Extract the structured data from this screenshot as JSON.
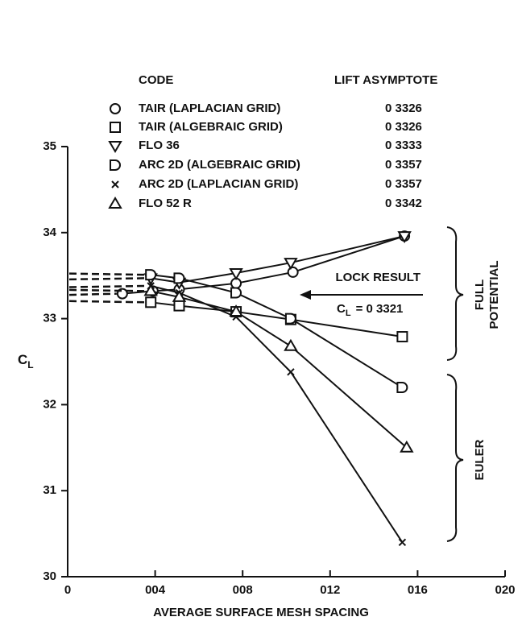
{
  "chart_data": {
    "type": "line",
    "xlabel": "AVERAGE SURFACE MESH SPACING",
    "ylabel": {
      "symbol": "C",
      "subscript": "L"
    },
    "legend_headers": {
      "code": "CODE",
      "asymptote": "LIFT ASYMPTOTE"
    },
    "xlim": [
      0,
      0.02
    ],
    "xticks": [
      0,
      {
        "value": 0.004,
        "label": "004"
      },
      {
        "value": 0.008,
        "label": "008"
      },
      {
        "value": 0.012,
        "label": "012"
      },
      {
        "value": 0.016,
        "label": "016"
      },
      {
        "value": 0.02,
        "label": "020"
      }
    ],
    "ylim": [
      30,
      35
    ],
    "yticks": [
      30,
      31,
      32,
      33,
      34,
      35
    ],
    "color": "#111111",
    "annotations": {
      "lock": "LOCK RESULT",
      "lock_value": {
        "symbol": "C",
        "subscript": "L",
        "text": "= 0 3321"
      },
      "full_potential": [
        "FULL",
        "POTENTIAL"
      ],
      "euler": "EULER"
    },
    "series": [
      {
        "name": "TAIR (LAPLACIAN GRID)",
        "asymptote": "0 3326",
        "marker": "circle",
        "x": [
          0.0025,
          0.0039,
          0.0051,
          0.0077,
          0.0103,
          0.0154
        ],
        "values": [
          33.29,
          33.32,
          33.34,
          33.41,
          33.54,
          33.96
        ]
      },
      {
        "name": "TAIR (ALGEBRAIC GRID)",
        "asymptote": "0 3326",
        "marker": "square",
        "x": [
          0.0038,
          0.0051,
          0.0077,
          0.0102,
          0.0153
        ],
        "values": [
          33.19,
          33.15,
          33.08,
          32.99,
          32.79
        ]
      },
      {
        "name": "FLO 36",
        "asymptote": "0 3333",
        "marker": "tri-down",
        "x": [
          0.0038,
          0.0051,
          0.0077,
          0.0102,
          0.0154
        ],
        "values": [
          33.47,
          33.42,
          33.53,
          33.65,
          33.96
        ]
      },
      {
        "name": "ARC 2D (ALGEBRAIC GRID)",
        "asymptote": "0 3357",
        "marker": "d",
        "x": [
          0.0038,
          0.0051,
          0.0077,
          0.0102,
          0.0153
        ],
        "values": [
          33.51,
          33.47,
          33.3,
          33.0,
          32.2
        ]
      },
      {
        "name": "ARC 2D (LAPLACIAN GRID)",
        "asymptote": "0 3357",
        "marker": "x",
        "x": [
          0.0038,
          0.0051,
          0.0077,
          0.0102,
          0.0153
        ],
        "values": [
          33.38,
          33.3,
          33.02,
          32.38,
          30.4
        ]
      },
      {
        "name": "FLO 52 R",
        "asymptote": "0 3342",
        "marker": "tri-up",
        "x": [
          0.0038,
          0.0051,
          0.0077,
          0.0102,
          0.0155
        ],
        "values": [
          33.32,
          33.25,
          33.08,
          32.68,
          31.5
        ]
      }
    ]
  }
}
